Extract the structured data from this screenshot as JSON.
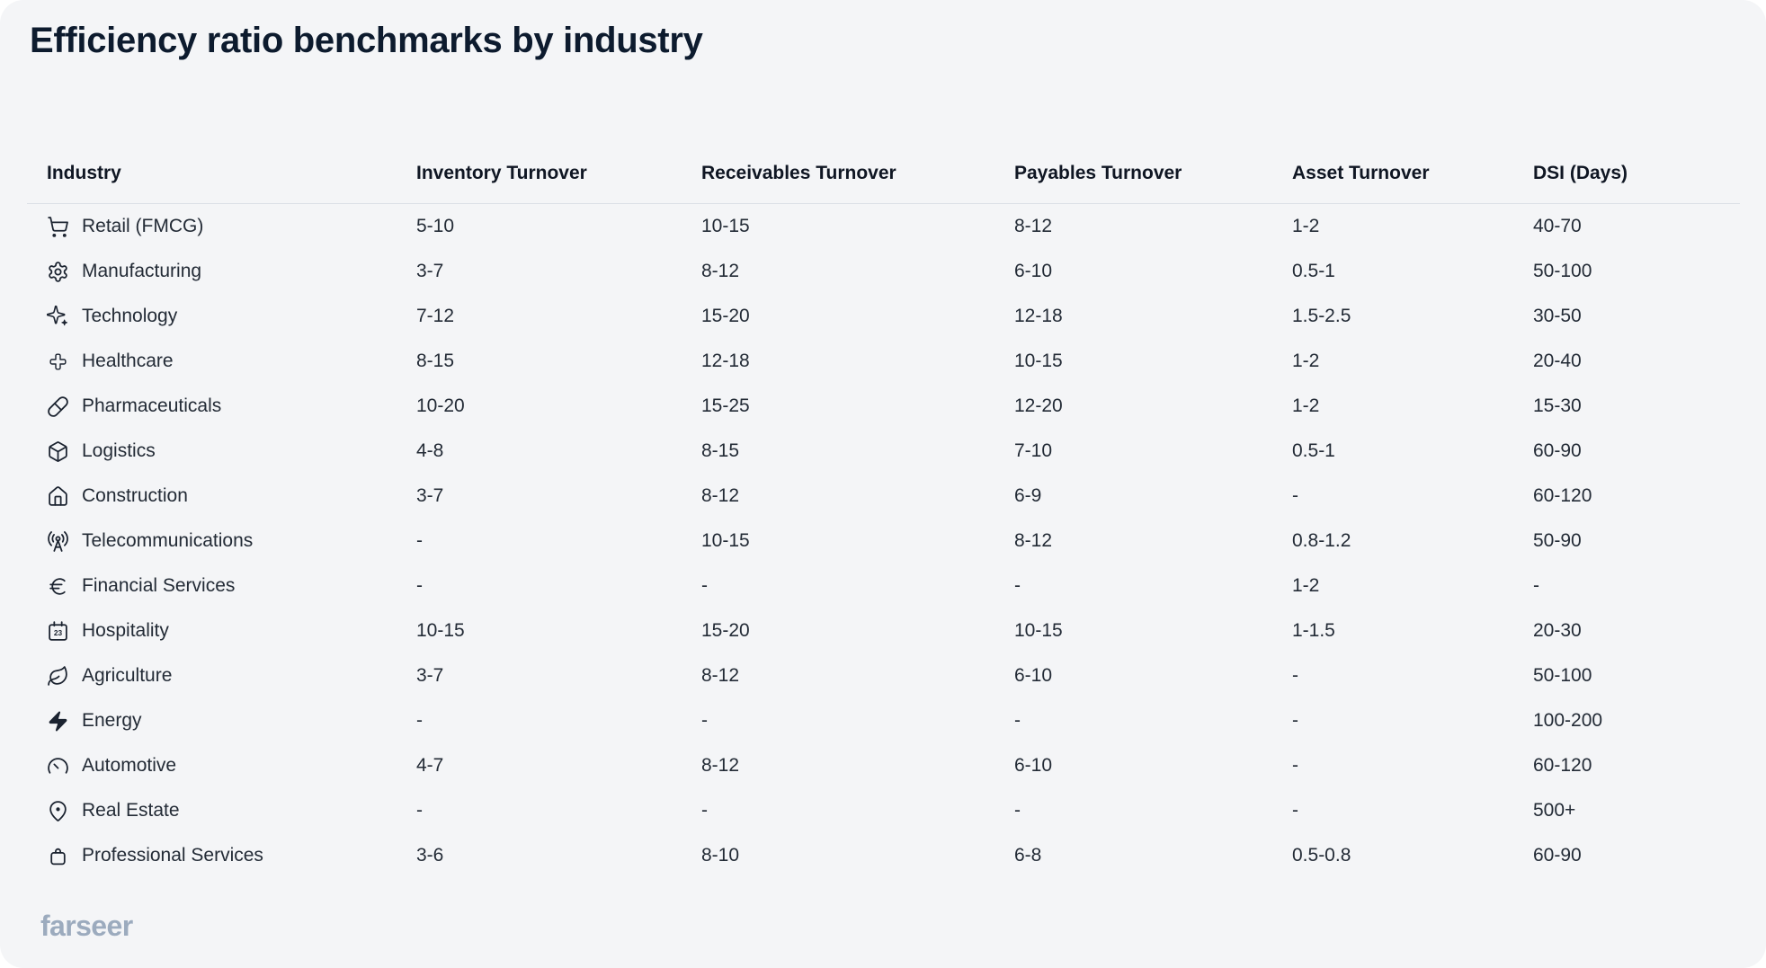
{
  "page": {
    "title": "Efficiency ratio benchmarks by industry"
  },
  "brand": {
    "logo_text": "farseer"
  },
  "colors": {
    "card_background": "#F4F5F7",
    "outer_background": "#FFFFFF",
    "title_text": "#0D1B2E",
    "header_text": "#0F1623",
    "body_text": "#232B36",
    "icon": "#1B2330",
    "divider": "#DCE0E7",
    "brand_logo": "#9CABBE"
  },
  "chart_data": {
    "type": "table",
    "title": "Efficiency ratio benchmarks by industry",
    "columns": [
      "Industry",
      "Inventory Turnover",
      "Receivables Turnover",
      "Payables Turnover",
      "Asset Turnover",
      "DSI (Days)"
    ],
    "rows": [
      {
        "industry": "Retail (FMCG)",
        "icon": "shopping-cart-icon",
        "values": [
          "5-10",
          "10-15",
          "8-12",
          "1-2",
          "40-70"
        ]
      },
      {
        "industry": "Manufacturing",
        "icon": "gear-icon",
        "values": [
          "3-7",
          "8-12",
          "6-10",
          "0.5-1",
          "50-100"
        ]
      },
      {
        "industry": "Technology",
        "icon": "sparkles-icon",
        "values": [
          "7-12",
          "15-20",
          "12-18",
          "1.5-2.5",
          "30-50"
        ]
      },
      {
        "industry": "Healthcare",
        "icon": "medical-cross-icon",
        "values": [
          "8-15",
          "12-18",
          "10-15",
          "1-2",
          "20-40"
        ]
      },
      {
        "industry": "Pharmaceuticals",
        "icon": "pill-icon",
        "values": [
          "10-20",
          "15-25",
          "12-20",
          "1-2",
          "15-30"
        ]
      },
      {
        "industry": "Logistics",
        "icon": "package-icon",
        "values": [
          "4-8",
          "8-15",
          "7-10",
          "0.5-1",
          "60-90"
        ]
      },
      {
        "industry": "Construction",
        "icon": "house-icon",
        "values": [
          "3-7",
          "8-12",
          "6-9",
          "-",
          "60-120"
        ]
      },
      {
        "industry": "Telecommunications",
        "icon": "radio-tower-icon",
        "values": [
          "-",
          "10-15",
          "8-12",
          "0.8-1.2",
          "50-90"
        ]
      },
      {
        "industry": "Financial Services",
        "icon": "euro-icon",
        "values": [
          "-",
          "-",
          "-",
          "1-2",
          "-"
        ]
      },
      {
        "industry": "Hospitality",
        "icon": "calendar-23-icon",
        "values": [
          "10-15",
          "15-20",
          "10-15",
          "1-1.5",
          "20-30"
        ]
      },
      {
        "industry": "Agriculture",
        "icon": "leaf-icon",
        "values": [
          "3-7",
          "8-12",
          "6-10",
          "-",
          "50-100"
        ]
      },
      {
        "industry": "Energy",
        "icon": "lightning-bolt-icon",
        "values": [
          "-",
          "-",
          "-",
          "-",
          "100-200"
        ]
      },
      {
        "industry": "Automotive",
        "icon": "gauge-icon",
        "values": [
          "4-7",
          "8-12",
          "6-10",
          "-",
          "60-120"
        ]
      },
      {
        "industry": "Real Estate",
        "icon": "map-pin-icon",
        "values": [
          "-",
          "-",
          "-",
          "-",
          "500+"
        ]
      },
      {
        "industry": "Professional Services",
        "icon": "bag-icon",
        "values": [
          "3-6",
          "8-10",
          "6-8",
          "0.5-0.8",
          "60-90"
        ]
      }
    ]
  }
}
